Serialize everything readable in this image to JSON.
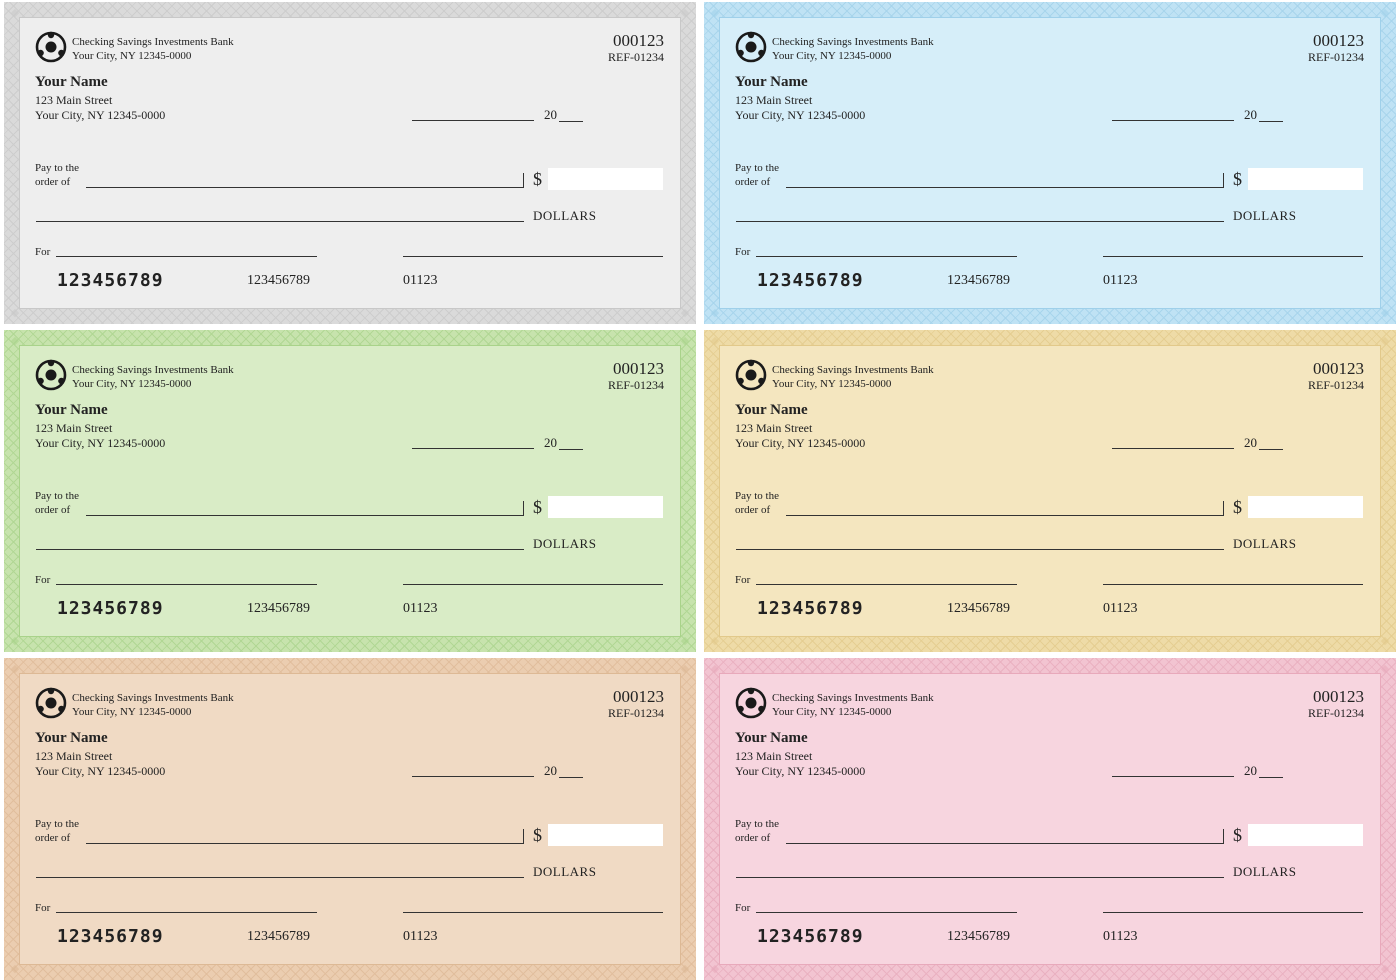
{
  "check_template": {
    "bank_name": "Checking Savings Investments Bank",
    "bank_city": "Your City, NY 12345-0000",
    "check_number": "000123",
    "reference": "REF-01234",
    "owner_name": "Your Name",
    "owner_street": "123 Main Street",
    "owner_city": "Your City, NY 12345-0000",
    "year_prefix": "20",
    "pay_label_line1": "Pay to the",
    "pay_label_line2": "order of",
    "currency_symbol": "$",
    "dollars_label": "DOLLARS",
    "memo_label": "For",
    "micr_routing": "123456789",
    "micr_account": "123456789",
    "micr_check_number": "01123"
  },
  "checks": [
    {
      "color_name": "gray",
      "background": "#eeeeee",
      "border": "#dadada",
      "pattern": "#c8c8c8"
    },
    {
      "color_name": "blue",
      "background": "#d6eef9",
      "border": "#bfe2f4",
      "pattern": "#9fd0ea"
    },
    {
      "color_name": "green",
      "background": "#d9ecc6",
      "border": "#c7e3ad",
      "pattern": "#a9d38a"
    },
    {
      "color_name": "yellow",
      "background": "#f4e6bf",
      "border": "#eedba7",
      "pattern": "#e2c98a"
    },
    {
      "color_name": "tan",
      "background": "#f0dac4",
      "border": "#ebcdb0",
      "pattern": "#ddb995"
    },
    {
      "color_name": "pink",
      "background": "#f7d5df",
      "border": "#f2c4d1",
      "pattern": "#e8a9bb"
    }
  ]
}
